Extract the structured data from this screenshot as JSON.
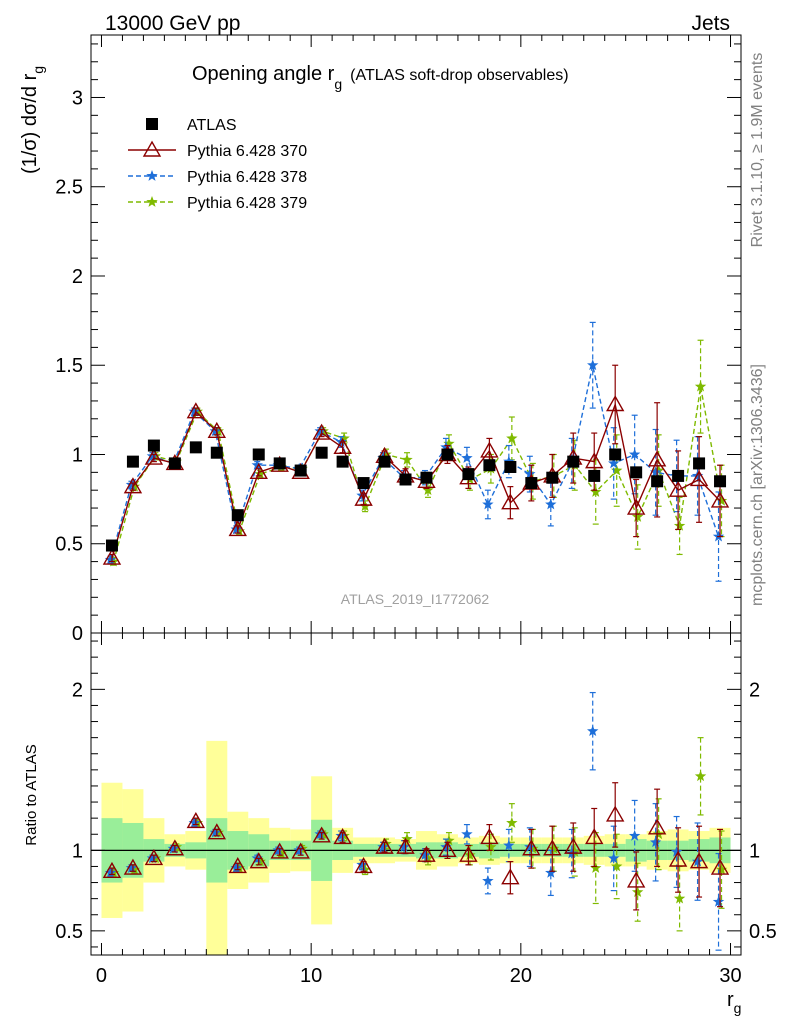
{
  "header": {
    "left": "13000 GeV pp",
    "right": "Jets"
  },
  "side_labels": {
    "rivet": "Rivet 3.1.10, ≥ 1.9M events",
    "mcplots": "mcplots.cern.ch [arXiv:1306.3436]"
  },
  "title": {
    "main": "Opening angle r",
    "sub": "g",
    "rest": "(ATLAS soft-drop observables)"
  },
  "watermark": "ATLAS_2019_I1772062",
  "main_ylabel": {
    "text": "(1/σ) dσ/d r",
    "sub": "g"
  },
  "ratio_ylabel": "Ratio to ATLAS",
  "xlabel": {
    "text": "r",
    "sub": "g"
  },
  "chart_data": [
    {
      "type": "scatter",
      "panel": "main",
      "xlim": [
        -0.5,
        30.5
      ],
      "ylim": [
        0,
        3.35
      ],
      "x_ticks": [
        "0",
        "10",
        "20",
        "30"
      ],
      "y_ticks": [
        "0",
        "0.5",
        "1",
        "1.5",
        "2",
        "2.5",
        "3"
      ],
      "x": [
        0.5,
        1.5,
        2.5,
        3.5,
        4.5,
        5.5,
        6.5,
        7.5,
        8.5,
        9.5,
        10.5,
        11.5,
        12.5,
        13.5,
        14.5,
        15.5,
        16.5,
        17.5,
        18.5,
        19.5,
        20.5,
        21.5,
        22.5,
        23.5,
        24.5,
        25.5,
        26.5,
        27.5,
        28.5,
        29.5
      ],
      "series": [
        {
          "name": "ATLAS",
          "color": "#000000",
          "marker": "square",
          "values": [
            0.49,
            0.96,
            1.05,
            0.95,
            1.04,
            1.01,
            0.66,
            1.0,
            0.95,
            0.91,
            1.01,
            0.96,
            0.84,
            0.96,
            0.86,
            0.87,
            1.0,
            0.89,
            0.94,
            0.93,
            0.84,
            0.87,
            0.96,
            0.88,
            1.0,
            0.9,
            0.85,
            0.88,
            0.95,
            0.85
          ]
        },
        {
          "name": "Pythia 6.428 370",
          "color": "#8b0000",
          "marker": "triangle",
          "line": "solid",
          "values": [
            0.42,
            0.82,
            0.98,
            0.95,
            1.24,
            1.13,
            0.58,
            0.9,
            0.94,
            0.9,
            1.12,
            1.04,
            0.75,
            0.99,
            0.88,
            0.85,
            1.0,
            0.87,
            1.02,
            0.73,
            0.84,
            0.88,
            0.98,
            0.96,
            1.28,
            0.7,
            0.97,
            0.8,
            0.86,
            0.74
          ],
          "errors": [
            0.02,
            0.02,
            0.02,
            0.02,
            0.02,
            0.02,
            0.02,
            0.02,
            0.02,
            0.02,
            0.02,
            0.03,
            0.03,
            0.03,
            0.04,
            0.04,
            0.05,
            0.06,
            0.07,
            0.09,
            0.1,
            0.12,
            0.14,
            0.16,
            0.22,
            0.16,
            0.32,
            0.22,
            0.24,
            0.2
          ]
        },
        {
          "name": "Pythia 6.428 378",
          "color": "#1e6fd9",
          "marker": "star",
          "line": "dashed",
          "values": [
            0.41,
            0.83,
            0.99,
            0.95,
            1.24,
            1.13,
            0.58,
            0.94,
            0.94,
            0.92,
            1.13,
            1.07,
            0.77,
            0.98,
            0.87,
            0.87,
            1.04,
            0.98,
            0.72,
            0.96,
            0.89,
            0.72,
            0.95,
            1.5,
            0.95,
            1.0,
            0.9,
            0.88,
            0.88,
            0.54
          ],
          "errors": [
            0.02,
            0.02,
            0.02,
            0.02,
            0.02,
            0.02,
            0.02,
            0.02,
            0.02,
            0.02,
            0.02,
            0.03,
            0.03,
            0.03,
            0.04,
            0.04,
            0.05,
            0.06,
            0.08,
            0.09,
            0.1,
            0.12,
            0.14,
            0.24,
            0.2,
            0.22,
            0.24,
            0.2,
            0.22,
            0.25
          ]
        },
        {
          "name": "Pythia 6.428 379",
          "color": "#7fba00",
          "marker": "star",
          "line": "dashed",
          "values": [
            0.4,
            0.82,
            0.99,
            0.96,
            1.24,
            1.13,
            0.57,
            0.89,
            0.93,
            0.92,
            1.13,
            1.09,
            0.71,
            1.0,
            0.97,
            0.8,
            1.06,
            0.86,
            0.92,
            1.09,
            0.85,
            0.88,
            0.94,
            0.79,
            0.91,
            0.65,
            0.91,
            0.6,
            1.38,
            0.74
          ],
          "errors": [
            0.02,
            0.02,
            0.02,
            0.02,
            0.02,
            0.02,
            0.02,
            0.02,
            0.02,
            0.02,
            0.02,
            0.03,
            0.03,
            0.03,
            0.04,
            0.04,
            0.05,
            0.06,
            0.08,
            0.12,
            0.1,
            0.12,
            0.14,
            0.18,
            0.2,
            0.18,
            0.2,
            0.16,
            0.26,
            0.2
          ]
        }
      ],
      "legend": "top-left"
    },
    {
      "type": "scatter",
      "panel": "ratio",
      "xlim": [
        -0.5,
        30.5
      ],
      "ylim": [
        0.35,
        2.35
      ],
      "x_ticks": [
        "0",
        "10",
        "20",
        "30"
      ],
      "y_ticks": [
        "0.5",
        "1",
        "2"
      ],
      "reference_line": 1,
      "band_green_halfwidth": [
        0.2,
        0.17,
        0.07,
        0.04,
        0.05,
        0.2,
        0.12,
        0.1,
        0.06,
        0.06,
        0.19,
        0.06,
        0.04,
        0.04,
        0.04,
        0.05,
        0.05,
        0.04,
        0.05,
        0.04,
        0.04,
        0.04,
        0.04,
        0.04,
        0.04,
        0.07,
        0.06,
        0.06,
        0.07,
        0.08
      ],
      "band_yellow_halfwidth": [
        0.42,
        0.38,
        0.2,
        0.1,
        0.12,
        0.68,
        0.24,
        0.2,
        0.14,
        0.13,
        0.46,
        0.14,
        0.08,
        0.08,
        0.07,
        0.12,
        0.1,
        0.08,
        0.09,
        0.08,
        0.08,
        0.08,
        0.08,
        0.09,
        0.1,
        0.1,
        0.12,
        0.13,
        0.12,
        0.14
      ],
      "series": [
        {
          "name": "Pythia 6.428 370",
          "color": "#8b0000",
          "values": [
            0.87,
            0.89,
            0.95,
            1.01,
            1.18,
            1.11,
            0.9,
            0.93,
            0.99,
            0.99,
            1.09,
            1.08,
            0.9,
            1.02,
            1.02,
            0.97,
            1.0,
            0.97,
            1.08,
            0.83,
            1.01,
            1.01,
            1.02,
            1.08,
            1.22,
            0.81,
            1.14,
            0.94,
            0.93,
            0.89
          ],
          "errors": [
            0.02,
            0.02,
            0.02,
            0.02,
            0.02,
            0.02,
            0.02,
            0.02,
            0.02,
            0.02,
            0.02,
            0.03,
            0.03,
            0.03,
            0.04,
            0.04,
            0.05,
            0.06,
            0.08,
            0.1,
            0.12,
            0.14,
            0.15,
            0.18,
            0.2,
            0.18,
            0.24,
            0.2,
            0.22,
            0.24
          ]
        },
        {
          "name": "Pythia 6.428 378",
          "color": "#1e6fd9",
          "values": [
            0.86,
            0.89,
            0.95,
            1.01,
            1.17,
            1.11,
            0.89,
            0.95,
            1.0,
            1.0,
            1.1,
            1.09,
            0.91,
            1.02,
            1.02,
            0.97,
            1.02,
            1.1,
            0.81,
            1.03,
            1.02,
            0.86,
            0.98,
            1.74,
            0.95,
            1.09,
            1.05,
            0.99,
            0.93,
            0.68
          ],
          "errors": [
            0.02,
            0.02,
            0.02,
            0.02,
            0.02,
            0.02,
            0.02,
            0.02,
            0.02,
            0.02,
            0.02,
            0.03,
            0.03,
            0.03,
            0.04,
            0.04,
            0.05,
            0.06,
            0.08,
            0.1,
            0.12,
            0.14,
            0.15,
            0.24,
            0.2,
            0.22,
            0.24,
            0.22,
            0.24,
            0.3
          ]
        },
        {
          "name": "Pythia 6.428 379",
          "color": "#7fba00",
          "values": [
            0.86,
            0.88,
            0.95,
            1.02,
            1.17,
            1.11,
            0.89,
            0.93,
            0.98,
            1.01,
            1.1,
            1.09,
            0.88,
            1.04,
            1.07,
            0.95,
            1.06,
            0.97,
            1.02,
            1.17,
            1.01,
            1.01,
            0.99,
            0.89,
            0.9,
            0.74,
            1.1,
            0.7,
            1.46,
            0.88
          ],
          "errors": [
            0.02,
            0.02,
            0.02,
            0.02,
            0.02,
            0.02,
            0.02,
            0.02,
            0.02,
            0.02,
            0.02,
            0.03,
            0.03,
            0.03,
            0.04,
            0.04,
            0.05,
            0.06,
            0.08,
            0.12,
            0.12,
            0.14,
            0.15,
            0.22,
            0.2,
            0.18,
            0.22,
            0.2,
            0.24,
            0.24
          ]
        }
      ]
    }
  ]
}
